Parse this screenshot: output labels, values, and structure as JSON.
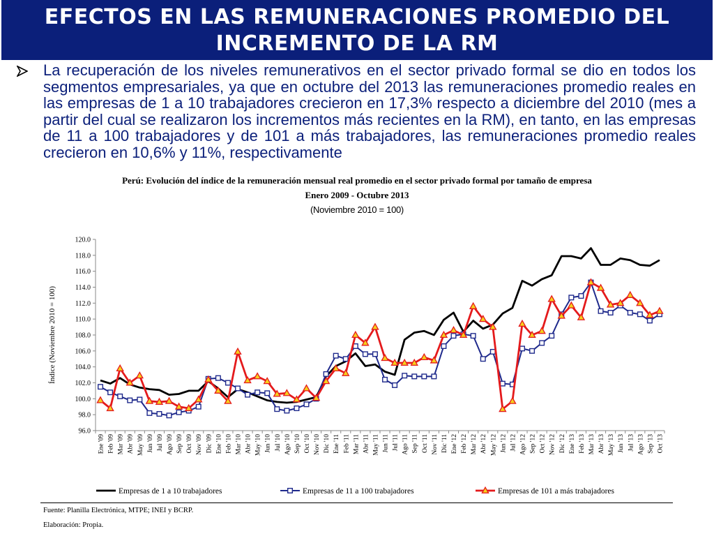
{
  "header": {
    "title": "EFECTOS EN LAS REMUNERACIONES PROMEDIO DEL INCREMENTO DE LA RM"
  },
  "bullet": {
    "text": "La recuperación de los niveles remunerativos en el sector privado formal se dio en todos los segmentos empresariales, ya que en octubre del 2013 las remuneraciones promedio reales en las empresas de 1 a 10 trabajadores crecieron en 17,3% respecto a diciembre del 2010 (mes a partir del cual se realizaron los incrementos más recientes en la RM), en tanto, en las empresas de 11 a 100 trabajadores y de 101 a más trabajadores, las remuneraciones promedio reales crecieron en 10,6% y 11%, respectivamente"
  },
  "chart_data": {
    "type": "line",
    "title": "Perú: Evolución del índice de la remuneración mensual real promedio en el sector privado formal por tamaño de empresa",
    "subtitle": "Enero 2009 - Octubre 2013",
    "base_note": "(Noviembre 2010 = 100)",
    "ylabel": "Índice (Noviembre 2010 = 100)",
    "ylim": [
      96,
      120
    ],
    "yticks": [
      "96.0",
      "98.0",
      "100.0",
      "102.0",
      "104.0",
      "106.0",
      "108.0",
      "110.0",
      "112.0",
      "114.0",
      "116.0",
      "118.0",
      "120.0"
    ],
    "grid": false,
    "legend_position": "bottom",
    "categories": [
      "Ene '09",
      "Feb '09",
      "Mar '09",
      "Abr '09",
      "May '09",
      "Jun '09",
      "Jul '09",
      "Ago '09",
      "Sep '09",
      "Oct '09",
      "Nov '09",
      "Dic '09",
      "Ene '10",
      "Feb '10",
      "Mar '10",
      "Abr '10",
      "May '10",
      "Jun '10",
      "Jul '10",
      "Ago '10",
      "Sep '10",
      "Oct '10",
      "Nov '10",
      "Dic '10",
      "Ene '11",
      "Feb '11",
      "Mar '11",
      "Abr '11",
      "May '11",
      "Jun '11",
      "Jul '11",
      "Ago '11",
      "Sep '11",
      "Oct '11",
      "Nov '11",
      "Dic '11",
      "Ene '12",
      "Feb '12",
      "Mar '12",
      "Abr '12",
      "May '12",
      "Jun '12",
      "Jul '12",
      "Ago '12",
      "Sep '12",
      "Oct '12",
      "Nov '12",
      "Dic '12",
      "Ene '13",
      "Feb '13",
      "Mar '13",
      "Abr '13",
      "May '13",
      "Jun '13",
      "Jul '13",
      "Ago '13",
      "Sep '13",
      "Oct '13"
    ],
    "series": [
      {
        "name": "Empresas de 1 a 10 trabajadores",
        "color": "#000000",
        "marker": "none",
        "values": [
          102.3,
          101.9,
          102.6,
          101.8,
          101.4,
          101.2,
          101.1,
          100.5,
          100.6,
          101.0,
          101.0,
          102.2,
          101.3,
          100.2,
          101.2,
          100.8,
          100.3,
          99.8,
          99.6,
          99.5,
          99.6,
          99.9,
          100.2,
          102.8,
          104.1,
          104.7,
          105.7,
          104.1,
          104.3,
          103.4,
          103.0,
          107.4,
          108.3,
          108.5,
          108.0,
          109.9,
          110.8,
          108.4,
          109.8,
          108.8,
          109.3,
          110.7,
          111.4,
          114.8,
          114.2,
          115.0,
          115.5,
          117.9,
          117.9,
          117.6,
          118.9,
          116.8,
          116.8,
          117.6,
          117.4,
          116.8,
          116.7,
          117.4
        ]
      },
      {
        "name": "Empresas de 11 a 100 trabajadores",
        "color": "#1f2a8c",
        "marker": "square",
        "values": [
          101.5,
          100.8,
          100.3,
          99.8,
          99.9,
          98.2,
          98.1,
          97.9,
          98.3,
          98.5,
          99.0,
          102.5,
          102.6,
          102.0,
          101.3,
          100.5,
          100.8,
          100.7,
          98.7,
          98.5,
          98.8,
          99.3,
          100.0,
          103.1,
          105.4,
          105.0,
          106.6,
          105.6,
          105.6,
          102.4,
          101.7,
          102.9,
          102.8,
          102.8,
          102.8,
          106.6,
          107.9,
          108.1,
          107.9,
          105.0,
          105.9,
          101.9,
          101.8,
          106.3,
          106.0,
          107.0,
          107.9,
          110.6,
          112.7,
          112.9,
          114.6,
          111.0,
          110.8,
          111.7,
          110.8,
          110.6,
          109.8,
          110.6
        ]
      },
      {
        "name": "Empresas de 101 a más trabajadores",
        "color": "#e41a1c",
        "marker": "triangle",
        "marker_fill": "#f5d11d",
        "values": [
          99.8,
          98.8,
          103.8,
          102.0,
          102.9,
          99.7,
          99.6,
          99.7,
          99.0,
          98.8,
          99.9,
          102.4,
          101.0,
          99.7,
          105.9,
          102.3,
          102.8,
          102.2,
          100.6,
          100.7,
          99.9,
          101.3,
          100.1,
          102.2,
          103.8,
          103.2,
          108.0,
          107.0,
          109.0,
          105.1,
          104.5,
          104.5,
          104.5,
          105.2,
          104.8,
          108.0,
          108.6,
          108.0,
          111.6,
          110.0,
          109.0,
          98.7,
          99.7,
          109.4,
          108.0,
          108.5,
          112.5,
          110.4,
          111.7,
          110.2,
          114.6,
          113.9,
          111.8,
          112.0,
          113.0,
          112.0,
          110.5,
          111.0
        ]
      }
    ]
  },
  "footer": {
    "source": "Fuente: Planilla Electrónica, MTPE; INEI y BCRP.",
    "elaboration": "Elaboración: Propia."
  }
}
